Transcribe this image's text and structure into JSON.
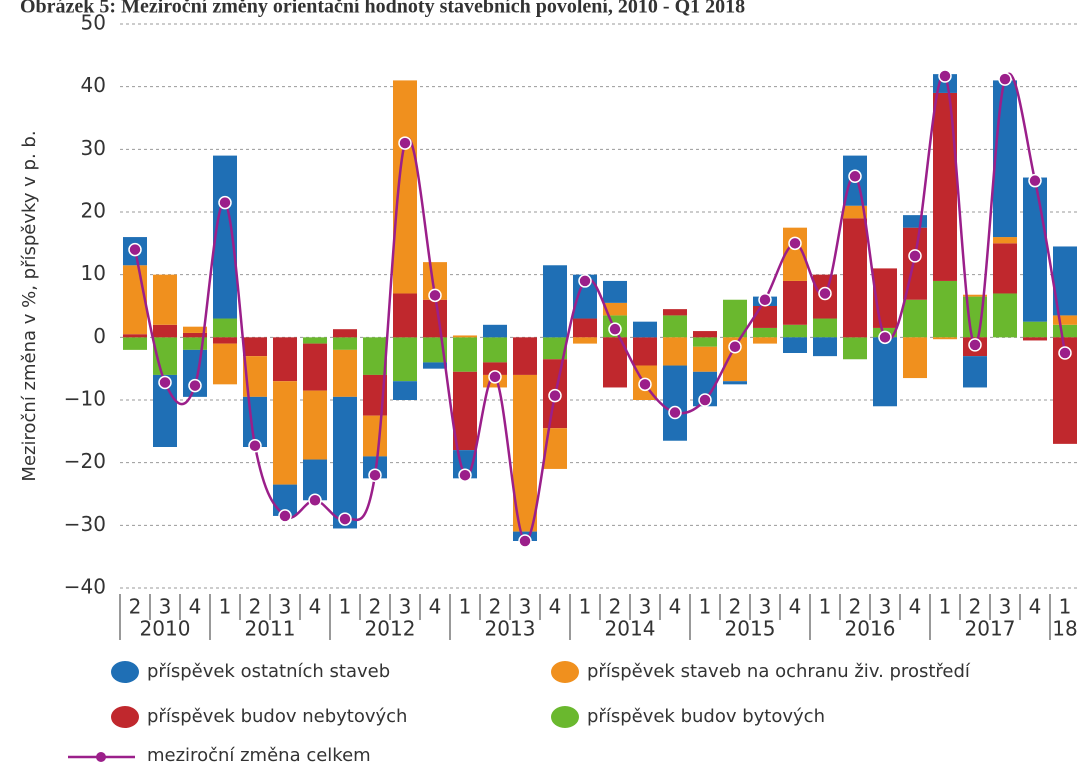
{
  "chart_data": {
    "type": "stacked_bar_line",
    "title": "Obrázek 5: Meziroční změny orientační hodnoty stavebních povolení, 2010 - Q1 2018",
    "y_label": "Meziroční změna v %, příspěvky v p. b.",
    "categories": [
      "2",
      "3",
      "4",
      "1",
      "2",
      "3",
      "4",
      "1",
      "2",
      "3",
      "4",
      "1",
      "2",
      "3",
      "4",
      "1",
      "2",
      "3",
      "4",
      "1",
      "2",
      "3",
      "4",
      "1",
      "2",
      "3",
      "4",
      "1",
      "2",
      "3",
      "4",
      "1"
    ],
    "years": [
      "2010",
      "2011",
      "2012",
      "2013",
      "2014",
      "2015",
      "2016",
      "2017",
      "18"
    ],
    "ylim": [
      -40,
      50
    ],
    "yticks": [
      {
        "value": -40,
        "label": "−40"
      },
      {
        "value": -30,
        "label": "−30"
      },
      {
        "value": -20,
        "label": "−20"
      },
      {
        "value": -10,
        "label": "−10"
      },
      0,
      10,
      20,
      30,
      40,
      50
    ],
    "grid": true,
    "series": [
      {
        "name": "příspěvek ostatních staveb",
        "color": "#1f6fb5",
        "values": [
          4.5,
          -11.5,
          -7.5,
          26,
          -8,
          -5,
          -6.5,
          -21,
          -3.5,
          -3,
          -1,
          -4.5,
          2,
          -1.5,
          11.5,
          7,
          3.5,
          2.5,
          -12,
          -5.5,
          -0.5,
          1.5,
          -2.5,
          -3,
          8,
          -11,
          2,
          3,
          -5,
          25,
          23,
          11
        ]
      },
      {
        "name": "příspěvek staveb na ochranu živ. prostředí",
        "color": "#f0901e",
        "values": [
          11,
          8,
          1,
          -6.5,
          -6.5,
          -16.5,
          -11,
          -7.5,
          -6.5,
          34,
          6,
          0.3,
          -2,
          -25,
          -6.5,
          -1,
          2,
          -5.5,
          -4.5,
          -4,
          -7,
          -1,
          8.5,
          0,
          2,
          0,
          -6.5,
          -0.3,
          0.3,
          1,
          0,
          1.5
        ]
      },
      {
        "name": "příspěvek budov nebytových",
        "color": "#c0282d",
        "values": [
          0.5,
          2,
          0.7,
          -1,
          -3,
          -7,
          -7.5,
          1.3,
          -6.5,
          7,
          6,
          -12.5,
          -2,
          -6,
          -11,
          3,
          -8,
          -4.5,
          1,
          1,
          0,
          3.5,
          7,
          7,
          19,
          9.5,
          11.5,
          30,
          -3,
          8,
          -0.5,
          -17
        ]
      },
      {
        "name": "příspěvek budov bytových",
        "color": "#6ab82e",
        "values": [
          -2,
          -6,
          -2,
          3,
          0,
          0,
          -1,
          -2,
          -6,
          -7,
          -4,
          -5.5,
          -4,
          0,
          -3.5,
          0,
          3.5,
          0,
          3.5,
          -1.5,
          6,
          1.5,
          2,
          3,
          -3.5,
          1.5,
          6,
          9,
          6.5,
          7,
          2.5,
          2
        ]
      }
    ],
    "line": {
      "name": "meziroční změna celkem",
      "color": "#9b1f8a",
      "values": [
        14,
        -7.2,
        -7.7,
        21.5,
        -17.3,
        -28.5,
        -26,
        -29,
        -22,
        31,
        6.7,
        -22,
        -6.3,
        -32.5,
        -9.3,
        9,
        1.3,
        -7.5,
        -12,
        -10,
        -1.5,
        6,
        15,
        7,
        25.7,
        0,
        13,
        41.7,
        -1.2,
        41.2,
        25,
        -2.5
      ]
    }
  }
}
